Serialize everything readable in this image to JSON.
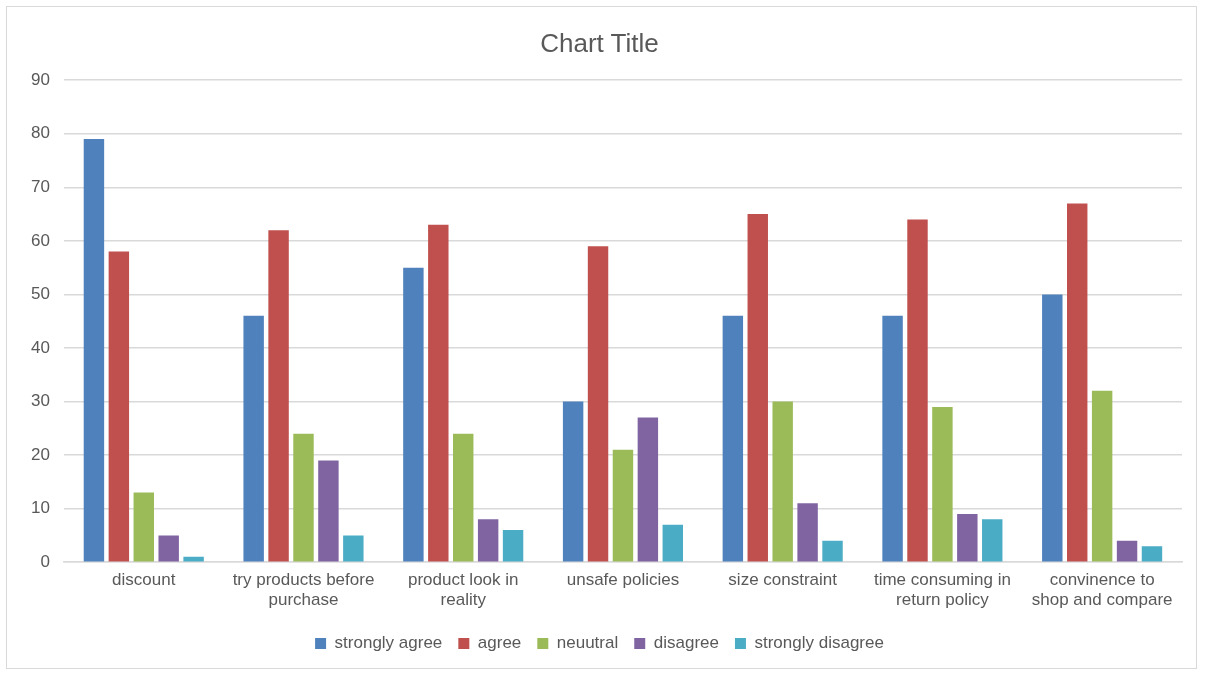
{
  "chart_data": {
    "type": "bar",
    "title": "Chart Title",
    "categories": [
      "discount",
      "try products before purchase",
      "product look in reality",
      "unsafe policies",
      "size constraint",
      "time consuming in return policy",
      "convinence to shop and compare"
    ],
    "series": [
      {
        "name": "strongly agree",
        "color": "#4f81bd",
        "values": [
          79,
          46,
          55,
          30,
          46,
          46,
          50
        ]
      },
      {
        "name": "agree",
        "color": "#c0504d",
        "values": [
          58,
          62,
          63,
          59,
          65,
          64,
          67
        ]
      },
      {
        "name": "neuutral",
        "color": "#9bbb59",
        "values": [
          13,
          24,
          24,
          21,
          30,
          29,
          32
        ]
      },
      {
        "name": "disagree",
        "color": "#8064a2",
        "values": [
          5,
          19,
          8,
          27,
          11,
          9,
          4
        ]
      },
      {
        "name": "strongly disagree",
        "color": "#4bacc6",
        "values": [
          1,
          5,
          6,
          7,
          4,
          8,
          3
        ]
      }
    ],
    "ylim": [
      0,
      90
    ],
    "yticks": [
      0,
      10,
      20,
      30,
      40,
      50,
      60,
      70,
      80,
      90
    ],
    "grid": "y",
    "legend": "bottom"
  }
}
